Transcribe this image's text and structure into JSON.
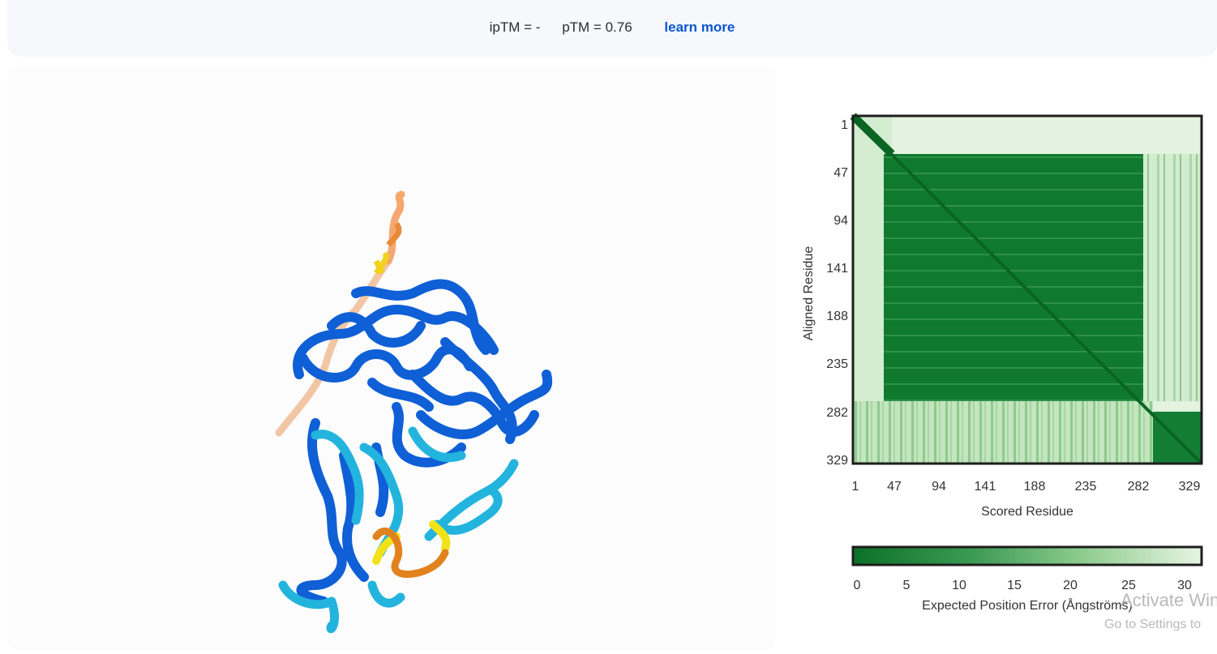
{
  "scores": {
    "iptm": "ipTM = -",
    "ptm": "pTM = 0.76",
    "learn_more": "learn more"
  },
  "pae_plot": {
    "ylabel": "Aligned Residue",
    "xlabel": "Scored Residue",
    "y_ticks": [
      "1",
      "47",
      "94",
      "141",
      "188",
      "235",
      "282",
      "329"
    ],
    "x_ticks": [
      "1",
      "47",
      "94",
      "141",
      "188",
      "235",
      "282",
      "329"
    ],
    "colors": {
      "low_error": "#0b7128",
      "high_error": "#e5f5e0",
      "frame": "#1e1e1e"
    }
  },
  "colorbar": {
    "ticks": [
      "0",
      "5",
      "10",
      "15",
      "20",
      "25",
      "30"
    ],
    "label": "Expected Position Error (Ångströms)"
  },
  "structure_colors": {
    "very_high": "#0053d6",
    "confident": "#65cbf3",
    "low": "#ffdb13",
    "very_low": "#ff7d45"
  },
  "watermark": {
    "line1": "Activate Win",
    "line2": "Go to Settings to"
  }
}
